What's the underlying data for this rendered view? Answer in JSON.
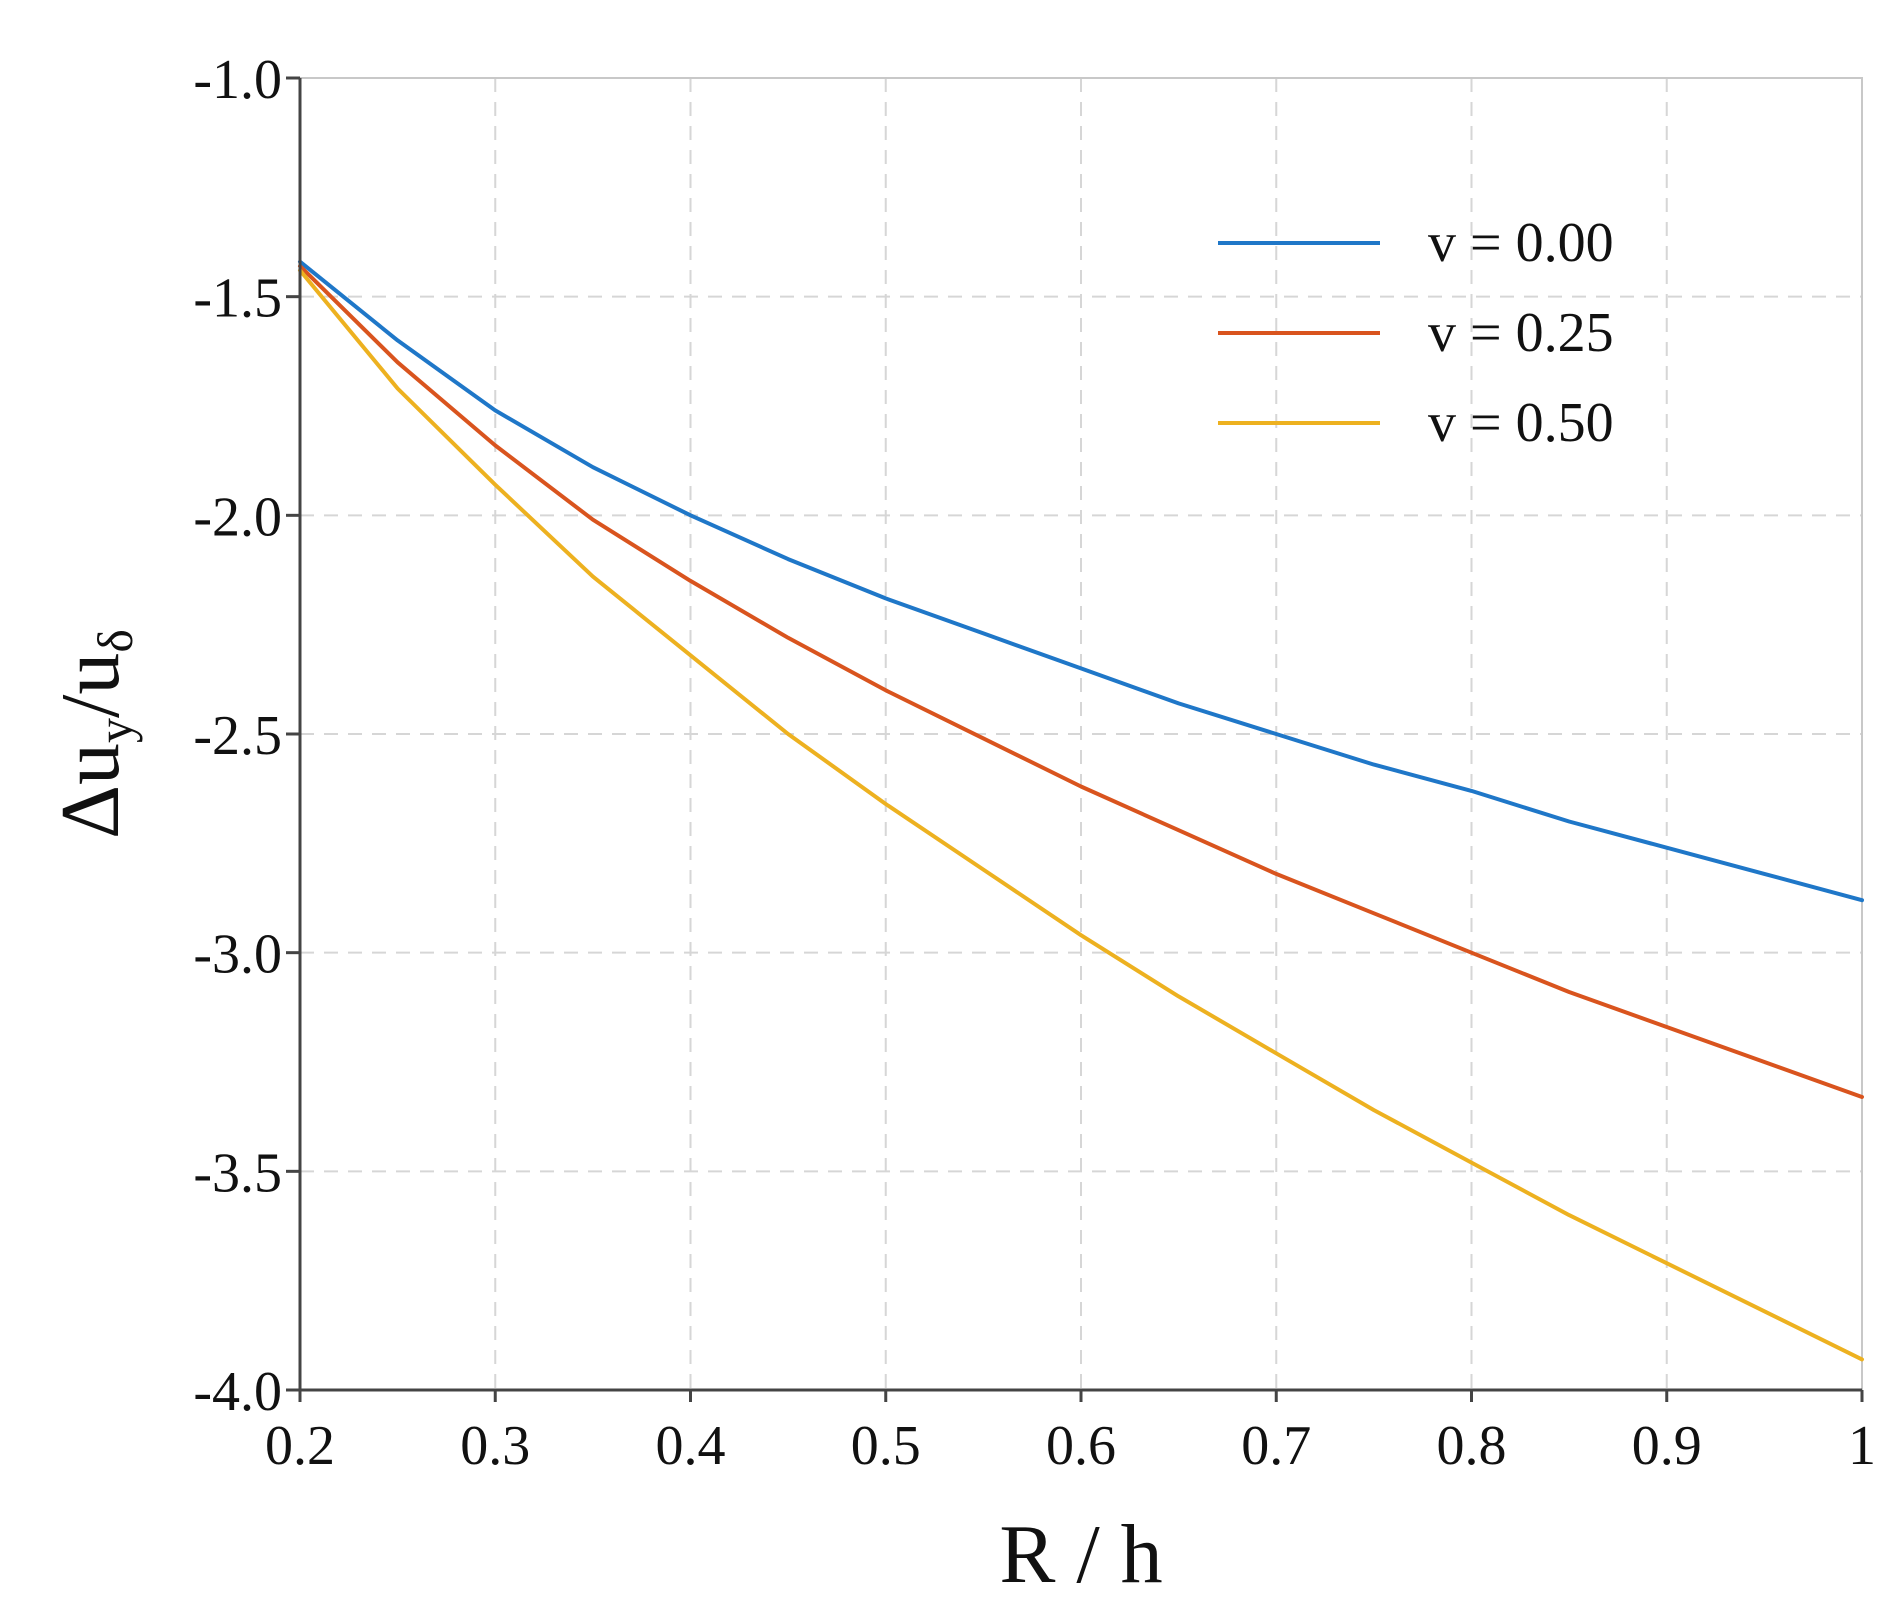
{
  "chart_data": {
    "type": "line",
    "xlabel": "R / h",
    "ylabel": {
      "main": "Δu",
      "sub1": "y",
      "mid": "/u",
      "sub2": "δ"
    },
    "xlim": [
      0.2,
      1.0
    ],
    "ylim": [
      -4.0,
      -1.0
    ],
    "xticks": [
      0.2,
      0.3,
      0.4,
      0.5,
      0.6,
      0.7,
      0.8,
      0.9,
      1.0
    ],
    "xtick_labels": [
      "0.2",
      "0.3",
      "0.4",
      "0.5",
      "0.6",
      "0.7",
      "0.8",
      "0.9",
      "1"
    ],
    "yticks": [
      -1.0,
      -1.5,
      -2.0,
      -2.5,
      -3.0,
      -3.5,
      -4.0
    ],
    "ytick_labels": [
      "-1.0",
      "-1.5",
      "-2.0",
      "-2.5",
      "-3.0",
      "-3.5",
      "-4.0"
    ],
    "grid": true,
    "legend_position": "top-right",
    "x": [
      0.2,
      0.25,
      0.3,
      0.35,
      0.4,
      0.45,
      0.5,
      0.55,
      0.6,
      0.65,
      0.7,
      0.75,
      0.8,
      0.85,
      0.9,
      0.95,
      1.0
    ],
    "series": [
      {
        "name": "v = 0.00",
        "color": "#1f77c8",
        "values": [
          -1.42,
          -1.6,
          -1.76,
          -1.89,
          -2.0,
          -2.1,
          -2.19,
          -2.27,
          -2.35,
          -2.43,
          -2.5,
          -2.57,
          -2.63,
          -2.7,
          -2.76,
          -2.82,
          -2.88
        ]
      },
      {
        "name": "v = 0.25",
        "color": "#d9541e",
        "values": [
          -1.43,
          -1.65,
          -1.84,
          -2.01,
          -2.15,
          -2.28,
          -2.4,
          -2.51,
          -2.62,
          -2.72,
          -2.82,
          -2.91,
          -3.0,
          -3.09,
          -3.17,
          -3.25,
          -3.33
        ]
      },
      {
        "name": "v = 0.50",
        "color": "#edb120",
        "values": [
          -1.44,
          -1.71,
          -1.93,
          -2.14,
          -2.32,
          -2.5,
          -2.66,
          -2.81,
          -2.96,
          -3.1,
          -3.23,
          -3.36,
          -3.48,
          -3.6,
          -3.71,
          -3.82,
          -3.93
        ]
      }
    ]
  }
}
